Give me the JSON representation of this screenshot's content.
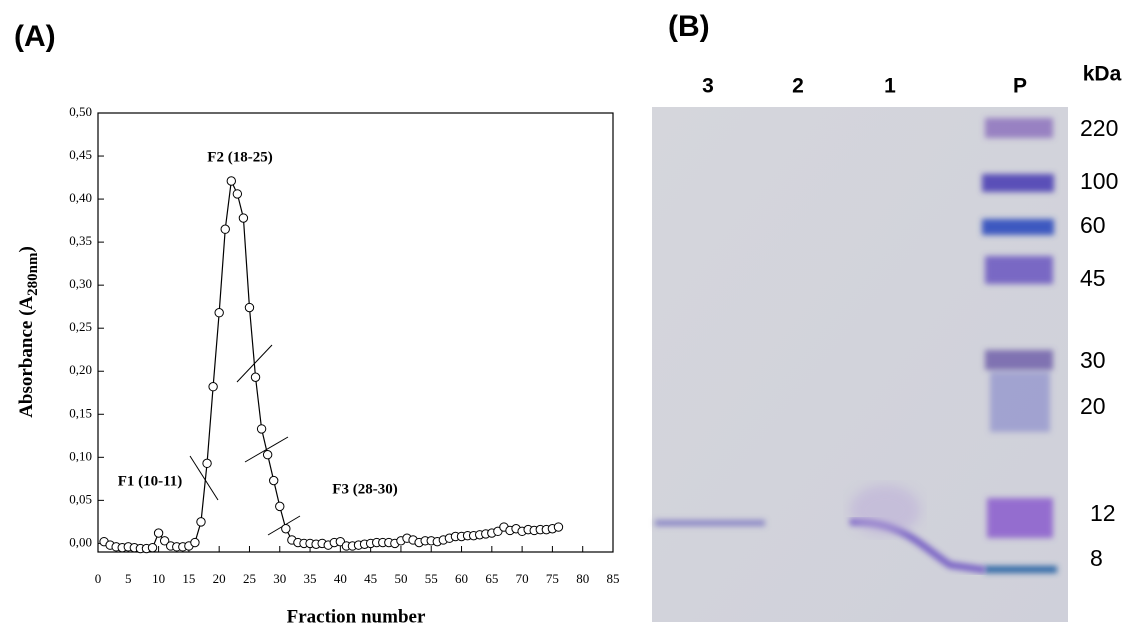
{
  "panel_a_label": "(A)",
  "panel_b_label": "(B)",
  "chart_data": {
    "type": "line",
    "x_label": "Fraction number",
    "y_label": [
      "Absorbance (A",
      "280nm",
      ")"
    ],
    "x": [
      1,
      2,
      3,
      4,
      5,
      6,
      7,
      8,
      9,
      10,
      11,
      12,
      13,
      14,
      15,
      16,
      17,
      18,
      19,
      20,
      21,
      22,
      23,
      24,
      25,
      26,
      27,
      28,
      29,
      30,
      31,
      32,
      33,
      34,
      35,
      36,
      37,
      38,
      39,
      40,
      41,
      42,
      43,
      44,
      45,
      46,
      47,
      48,
      49,
      50,
      51,
      52,
      53,
      54,
      55,
      56,
      57,
      58,
      59,
      60,
      61,
      62,
      63,
      64,
      65,
      66,
      67,
      68,
      69,
      70,
      71,
      72,
      73,
      74,
      75,
      76
    ],
    "series": [
      {
        "color": "#000000",
        "values": [
          0.002,
          -0.002,
          -0.004,
          -0.005,
          -0.004,
          -0.005,
          -0.006,
          -0.006,
          -0.005,
          0.012,
          0.003,
          -0.003,
          -0.004,
          -0.004,
          -0.003,
          0.001,
          0.025,
          0.093,
          0.182,
          0.268,
          0.365,
          0.421,
          0.406,
          0.378,
          0.274,
          0.193,
          0.133,
          0.103,
          0.073,
          0.043,
          0.017,
          0.004,
          0.001,
          0.0,
          0.0,
          -0.001,
          0.0,
          -0.002,
          0.001,
          0.002,
          -0.003,
          -0.003,
          -0.002,
          -0.001,
          0.0,
          0.001,
          0.001,
          0.001,
          0.0,
          0.003,
          0.006,
          0.004,
          0.001,
          0.003,
          0.003,
          0.002,
          0.004,
          0.006,
          0.008,
          0.008,
          0.009,
          0.009,
          0.01,
          0.011,
          0.012,
          0.014,
          0.019,
          0.015,
          0.017,
          0.014,
          0.016,
          0.015,
          0.016,
          0.016,
          0.017,
          0.019
        ]
      }
    ],
    "xlim": [
      0,
      85
    ],
    "xticks": [
      0,
      5,
      10,
      15,
      20,
      25,
      30,
      35,
      40,
      45,
      50,
      55,
      60,
      65,
      70,
      75,
      80,
      85
    ],
    "ylim": [
      -0.01,
      0.5
    ],
    "yticks": [
      {
        "value": 0,
        "label": "0,00"
      },
      {
        "value": 0.05,
        "label": "0,05"
      },
      {
        "value": 0.1,
        "label": "0,10"
      },
      {
        "value": 0.15,
        "label": "0,15"
      },
      {
        "value": 0.2,
        "label": "0,20"
      },
      {
        "value": 0.25,
        "label": "0,25"
      },
      {
        "value": 0.3,
        "label": "0,30"
      },
      {
        "value": 0.35,
        "label": "0,35"
      },
      {
        "value": 0.4,
        "label": "0,40"
      },
      {
        "value": 0.45,
        "label": "0,45"
      },
      {
        "value": 0.5,
        "label": "0,50"
      }
    ],
    "annotations": [
      "F2 (18-25)",
      "F1 (10-11)",
      "F3 (28-30)"
    ]
  },
  "gel": {
    "lanes": [
      "3",
      "2",
      "1",
      "P"
    ],
    "unit": "kDa",
    "markers": [
      "220",
      "100",
      "60",
      "45",
      "30",
      "20",
      "12",
      "8"
    ]
  }
}
